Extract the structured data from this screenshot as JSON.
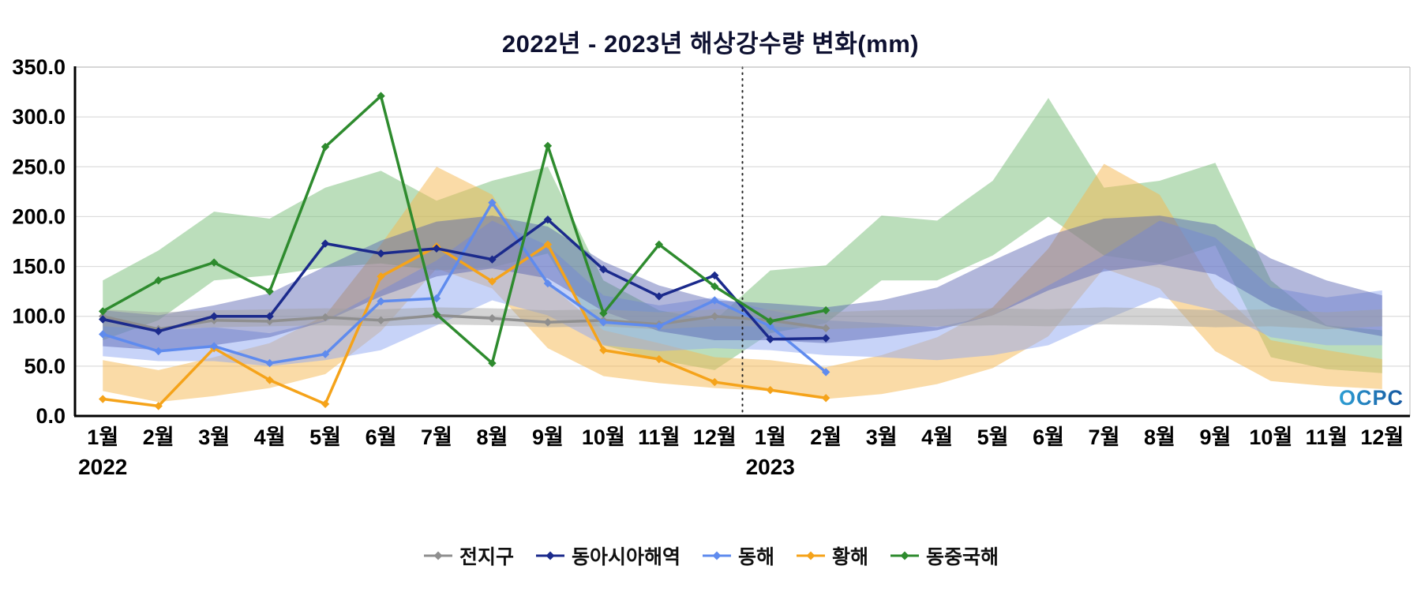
{
  "chart_data": {
    "type": "line",
    "title": "2022년 - 2023년 해상강수량 변화(mm)",
    "ylim": [
      0,
      350
    ],
    "yticks": [
      0,
      50,
      100,
      150,
      200,
      250,
      300,
      350
    ],
    "ytick_labels": [
      "0.0",
      "50.0",
      "100.0",
      "150.0",
      "200.0",
      "250.0",
      "300.0",
      "350.0"
    ],
    "x_labels": [
      "1월",
      "2월",
      "3월",
      "4월",
      "5월",
      "6월",
      "7월",
      "8월",
      "9월",
      "10월",
      "11월",
      "12월",
      "1월",
      "2월",
      "3월",
      "4월",
      "5월",
      "6월",
      "7월",
      "8월",
      "9월",
      "10월",
      "11월",
      "12월"
    ],
    "year_labels": [
      {
        "text": "2022",
        "month_index": 0
      },
      {
        "text": "2023",
        "month_index": 12
      }
    ],
    "divider_month_boundary": 12,
    "grid": true,
    "legend_position": "bottom",
    "watermark": "OCPC",
    "series": [
      {
        "name": "전지구",
        "color": "#8f8f8f",
        "band_color": "#a0a0a0",
        "band_opacity": 0.45,
        "values": [
          100,
          87,
          96,
          95,
          99,
          96,
          101,
          98,
          94,
          96,
          92,
          100,
          96,
          88
        ],
        "band": {
          "lo": [
            90,
            87,
            89,
            90,
            91,
            90,
            92,
            91,
            89,
            90,
            87,
            90,
            90,
            87,
            89,
            90,
            91,
            90,
            92,
            91,
            89,
            90,
            87,
            90
          ],
          "hi": [
            107,
            104,
            106,
            107,
            108,
            107,
            109,
            108,
            106,
            107,
            104,
            107,
            107,
            104,
            106,
            107,
            108,
            107,
            109,
            108,
            106,
            107,
            104,
            107
          ]
        }
      },
      {
        "name": "동아시아해역",
        "color": "#1b2a8c",
        "band_color": "#5560b0",
        "band_opacity": 0.45,
        "values": [
          97,
          85,
          100,
          100,
          173,
          163,
          168,
          157,
          197,
          147,
          120,
          141,
          77,
          78
        ],
        "band": {
          "lo": [
            70,
            66,
            71,
            79,
            95,
            120,
            140,
            148,
            138,
            105,
            85,
            76,
            76,
            73,
            79,
            86,
            101,
            126,
            145,
            152,
            142,
            110,
            90,
            80
          ],
          "hi": [
            106,
            101,
            111,
            123,
            150,
            176,
            195,
            201,
            190,
            155,
            131,
            116,
            113,
            109,
            116,
            129,
            156,
            181,
            198,
            201,
            192,
            158,
            136,
            121
          ]
        }
      },
      {
        "name": "동해",
        "color": "#5f8bee",
        "band_color": "#8fa8f2",
        "band_opacity": 0.5,
        "values": [
          82,
          65,
          70,
          53,
          62,
          115,
          118,
          214,
          133,
          94,
          90,
          116,
          90,
          44
        ],
        "band": {
          "lo": [
            60,
            55,
            55,
            50,
            56,
            66,
            91,
            116,
            101,
            71,
            65,
            68,
            66,
            61,
            59,
            56,
            61,
            71,
            96,
            119,
            106,
            79,
            71,
            71
          ],
          "hi": [
            96,
            86,
            89,
            83,
            96,
            126,
            156,
            196,
            171,
            121,
            111,
            119,
            106,
            96,
            93,
            89,
            101,
            131,
            161,
            196,
            179,
            129,
            119,
            126
          ]
        }
      },
      {
        "name": "황해",
        "color": "#f5a31a",
        "band_color": "#f6b84f",
        "band_opacity": 0.5,
        "values": [
          17,
          10,
          68,
          36,
          12,
          140,
          170,
          135,
          172,
          66,
          57,
          34,
          26,
          18
        ],
        "band": {
          "lo": [
            25,
            14,
            20,
            28,
            42,
            85,
            148,
            128,
            68,
            40,
            33,
            28,
            25,
            17,
            22,
            32,
            48,
            80,
            148,
            128,
            65,
            35,
            30,
            27
          ],
          "hi": [
            56,
            46,
            59,
            73,
            101,
            172,
            250,
            222,
            133,
            86,
            73,
            59,
            56,
            49,
            61,
            79,
            109,
            168,
            253,
            222,
            129,
            76,
            66,
            57
          ]
        }
      },
      {
        "name": "동중국해",
        "color": "#2e8b2e",
        "band_color": "#77bd77",
        "band_opacity": 0.5,
        "values": [
          105,
          136,
          154,
          125,
          270,
          321,
          102,
          53,
          271,
          103,
          172,
          130,
          95,
          106
        ],
        "band": {
          "lo": [
            76,
            96,
            136,
            141,
            149,
            153,
            146,
            149,
            163,
            71,
            56,
            46,
            83,
            93,
            136,
            136,
            161,
            200,
            161,
            153,
            171,
            59,
            47,
            43
          ],
          "hi": [
            136,
            166,
            205,
            198,
            229,
            246,
            216,
            236,
            250,
            136,
            106,
            96,
            146,
            151,
            201,
            196,
            236,
            319,
            229,
            236,
            254,
            136,
            91,
            86
          ]
        }
      }
    ]
  }
}
